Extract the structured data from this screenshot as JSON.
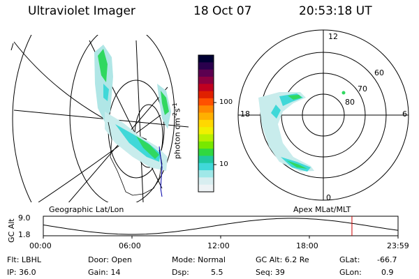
{
  "header": {
    "title": "Ultraviolet Imager",
    "date": "18 Oct 07",
    "time": "20:53:18 UT"
  },
  "colorbar": {
    "label": "photon cm",
    "label_sup1": "-2",
    "label_mid": "s",
    "label_sup2": "-1",
    "tick_high": "100",
    "tick_low": "10",
    "colors": [
      "#000033",
      "#2a004d",
      "#5c0050",
      "#8c0040",
      "#c00020",
      "#e02000",
      "#ff5000",
      "#ff8800",
      "#ffb000",
      "#ffd800",
      "#f0f000",
      "#b8f000",
      "#78e800",
      "#30d840",
      "#20c8a0",
      "#40d8d8",
      "#a0e8e8",
      "#d8eef0",
      "#eef3f5"
    ]
  },
  "left_panel": {
    "caption": "Geographic Lat/Lon"
  },
  "right_panel": {
    "caption": "Apex MLat/MLT",
    "mlt_labels": {
      "top": "12",
      "left": "18",
      "right": "6",
      "bottom": "0"
    },
    "lat_labels": [
      "60",
      "70",
      "80"
    ]
  },
  "timeline": {
    "ylabel": "GC Alt",
    "y_high": "9.0",
    "y_low": "1.8",
    "ticks": [
      "00:00",
      "06:00",
      "12:00",
      "18:00",
      "23:59"
    ],
    "marker_fraction": 0.87
  },
  "info": {
    "flt": "Flt: LBHL",
    "ip": "IP: 36.0",
    "door": "Door: Open",
    "gain": "Gain: 14",
    "mode": "Mode: Normal",
    "dsp_label": "Dsp:",
    "dsp_value": "5.5",
    "gc_alt": "GC Alt: 6.2 Re",
    "seq": "Seq: 39",
    "glat_label": "GLat:",
    "glat_value": "-66.7",
    "glon_label": "GLon:",
    "glon_value": "0.9"
  }
}
